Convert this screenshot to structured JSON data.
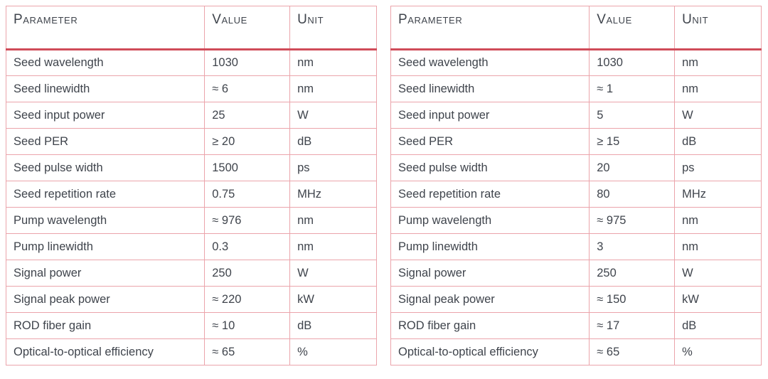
{
  "colors": {
    "border_thin": "#eba4ab",
    "border_thick": "#d04b59",
    "text": "#3f444c",
    "background": "#ffffff"
  },
  "tables": [
    {
      "name": "left-spec-table",
      "headers": [
        "Parameter",
        "Value",
        "Unit"
      ],
      "rows": [
        [
          "Seed wavelength",
          "1030",
          "nm"
        ],
        [
          "Seed linewidth",
          "≈ 6",
          "nm"
        ],
        [
          "Seed input power",
          "25",
          "W"
        ],
        [
          "Seed PER",
          "≥ 20",
          "dB"
        ],
        [
          "Seed pulse width",
          "1500",
          "ps"
        ],
        [
          "Seed repetition rate",
          "0.75",
          "MHz"
        ],
        [
          "Pump wavelength",
          "≈ 976",
          "nm"
        ],
        [
          "Pump linewidth",
          "0.3",
          "nm"
        ],
        [
          "Signal power",
          "250",
          "W"
        ],
        [
          "Signal peak power",
          "≈ 220",
          "kW"
        ],
        [
          "ROD fiber gain",
          "≈ 10",
          "dB"
        ],
        [
          "Optical-to-optical efficiency",
          "≈ 65",
          "%"
        ]
      ]
    },
    {
      "name": "right-spec-table",
      "headers": [
        "Parameter",
        "Value",
        "Unit"
      ],
      "rows": [
        [
          "Seed wavelength",
          "1030",
          "nm"
        ],
        [
          "Seed linewidth",
          "≈ 1",
          "nm"
        ],
        [
          "Seed input power",
          "5",
          "W"
        ],
        [
          "Seed PER",
          "≥ 15",
          "dB"
        ],
        [
          "Seed pulse width",
          "20",
          "ps"
        ],
        [
          "Seed repetition rate",
          "80",
          "MHz"
        ],
        [
          "Pump wavelength",
          "≈ 975",
          "nm"
        ],
        [
          "Pump linewidth",
          "3",
          "nm"
        ],
        [
          "Signal power",
          "250",
          "W"
        ],
        [
          "Signal peak power",
          "≈ 150",
          "kW"
        ],
        [
          "ROD fiber gain",
          "≈ 17",
          "dB"
        ],
        [
          "Optical-to-optical efficiency",
          "≈ 65",
          "%"
        ]
      ]
    }
  ]
}
